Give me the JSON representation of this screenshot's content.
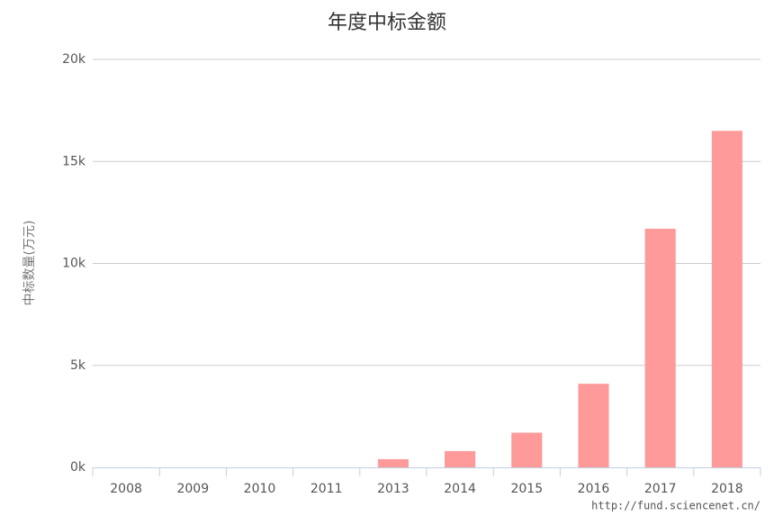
{
  "chart_data": {
    "type": "bar",
    "title": "年度中标金额",
    "y_label": "中标数量(万元)",
    "credit": "http://fund.sciencenet.cn/",
    "categories": [
      "2008",
      "2009",
      "2010",
      "2011",
      "2013",
      "2014",
      "2015",
      "2016",
      "2017",
      "2018"
    ],
    "values": [
      0,
      0,
      0,
      0,
      400,
      800,
      1700,
      4100,
      11700,
      16500
    ],
    "color": "#fe9a9a",
    "ylim": [
      0,
      20000
    ],
    "yticks": [
      {
        "value": 0,
        "label": "0k"
      },
      {
        "value": 5000,
        "label": "5k"
      },
      {
        "value": 10000,
        "label": "10k"
      },
      {
        "value": 15000,
        "label": "15k"
      },
      {
        "value": 20000,
        "label": "20k"
      }
    ],
    "grid": true
  }
}
